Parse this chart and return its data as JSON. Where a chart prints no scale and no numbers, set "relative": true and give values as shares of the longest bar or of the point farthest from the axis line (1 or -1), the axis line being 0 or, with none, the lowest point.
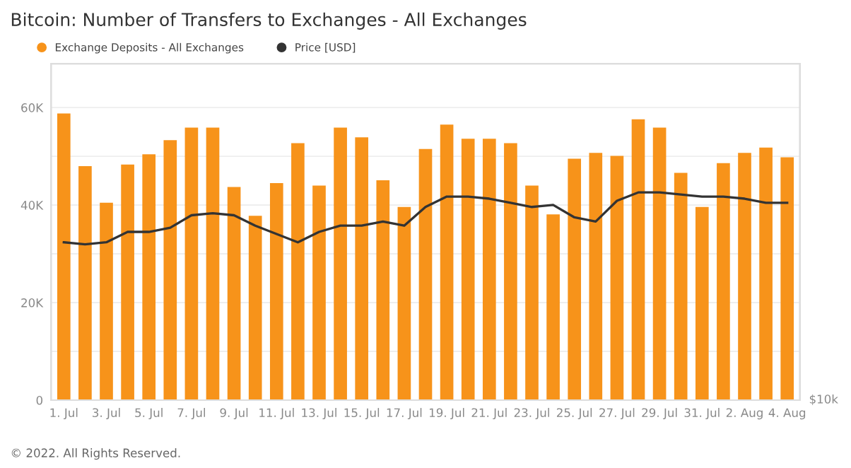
{
  "chart_data": [
    {
      "type": "bar",
      "title": "Bitcoin: Number of Transfers to Exchanges - All Exchanges",
      "categories": [
        "1. Jul",
        null,
        "3. Jul",
        null,
        "5. Jul",
        null,
        "7. Jul",
        null,
        "9. Jul",
        null,
        "11. Jul",
        null,
        "13. Jul",
        null,
        "15. Jul",
        null,
        "17. Jul",
        null,
        "19. Jul",
        null,
        "21. Jul",
        null,
        "23. Jul",
        null,
        "25. Jul",
        null,
        "27. Jul",
        null,
        "29. Jul",
        null,
        "31. Jul",
        null,
        "2. Aug",
        null,
        "4. Aug"
      ],
      "series": [
        {
          "name": "Exchange Deposits - All Exchanges",
          "color": "#f7931a",
          "values": [
            58800,
            48000,
            40500,
            48300,
            50400,
            53300,
            55900,
            55900,
            43700,
            37800,
            44500,
            52700,
            44000,
            55900,
            53900,
            45100,
            39600,
            51500,
            56500,
            53600,
            53600,
            52700,
            44000,
            38100,
            49500,
            50700,
            50100,
            57600,
            55900,
            46600,
            39600,
            48600,
            50700,
            51800,
            49800
          ]
        }
      ],
      "ylim": [
        0,
        69000
      ],
      "yticks": [
        {
          "value": 0,
          "label": "0"
        },
        {
          "value": 10000,
          "label": null
        },
        {
          "value": 20000,
          "label": "20K"
        },
        {
          "value": 30000,
          "label": null
        },
        {
          "value": 40000,
          "label": "40K"
        },
        {
          "value": 50000,
          "label": null
        },
        {
          "value": 60000,
          "label": "60K"
        }
      ],
      "grid": "y",
      "legend": "top left",
      "annotations": [
        "© 2022. All Rights Reserved."
      ]
    },
    {
      "type": "line",
      "relative": true,
      "categories": [
        null,
        null,
        null,
        null,
        null,
        null,
        null,
        null,
        null,
        null,
        null,
        null,
        null,
        null,
        null,
        null,
        null,
        null,
        null,
        null,
        null,
        null,
        null,
        null,
        null,
        null,
        null,
        null,
        null,
        null,
        null,
        null,
        null,
        null,
        null
      ],
      "series": [
        {
          "name": "Price [USD]",
          "color": "#333333",
          "values": [
            0.76,
            0.75,
            0.76,
            0.81,
            0.81,
            0.83,
            0.89,
            0.9,
            0.89,
            0.84,
            0.8,
            0.76,
            0.81,
            0.84,
            0.84,
            0.86,
            0.84,
            0.93,
            0.98,
            0.98,
            0.97,
            0.95,
            0.93,
            0.94,
            0.88,
            0.86,
            0.96,
            1,
            1,
            0.99,
            0.98,
            0.98,
            0.97,
            0.95,
            0.95
          ]
        }
      ],
      "legend": "top left",
      "marker": "none",
      "annotations": [
        "$10k"
      ]
    }
  ]
}
